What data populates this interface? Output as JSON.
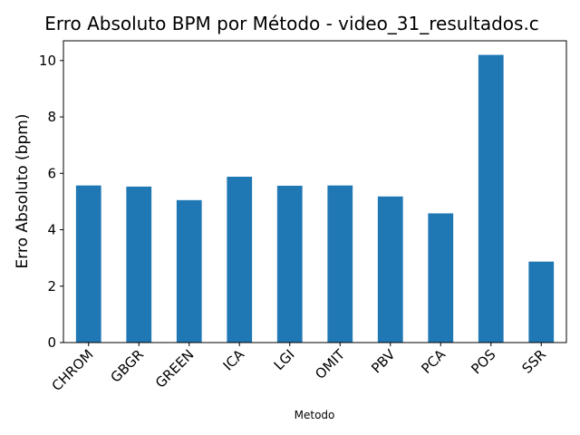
{
  "chart_data": {
    "type": "bar",
    "title": "Erro Absoluto BPM por Método - video_31_resultados.c",
    "xlabel": "Metodo",
    "ylabel": "Erro Absoluto (bpm)",
    "categories": [
      "CHROM",
      "GBGR",
      "GREEN",
      "ICA",
      "LGI",
      "OMIT",
      "PBV",
      "PCA",
      "POS",
      "SSR"
    ],
    "values": [
      5.57,
      5.53,
      5.05,
      5.88,
      5.56,
      5.57,
      5.18,
      4.58,
      10.2,
      2.87
    ],
    "ylim": [
      0,
      10.7
    ],
    "yticks": [
      0,
      2,
      4,
      6,
      8,
      10
    ],
    "bar_color": "#1f77b4",
    "grid": false,
    "legend": "none"
  }
}
